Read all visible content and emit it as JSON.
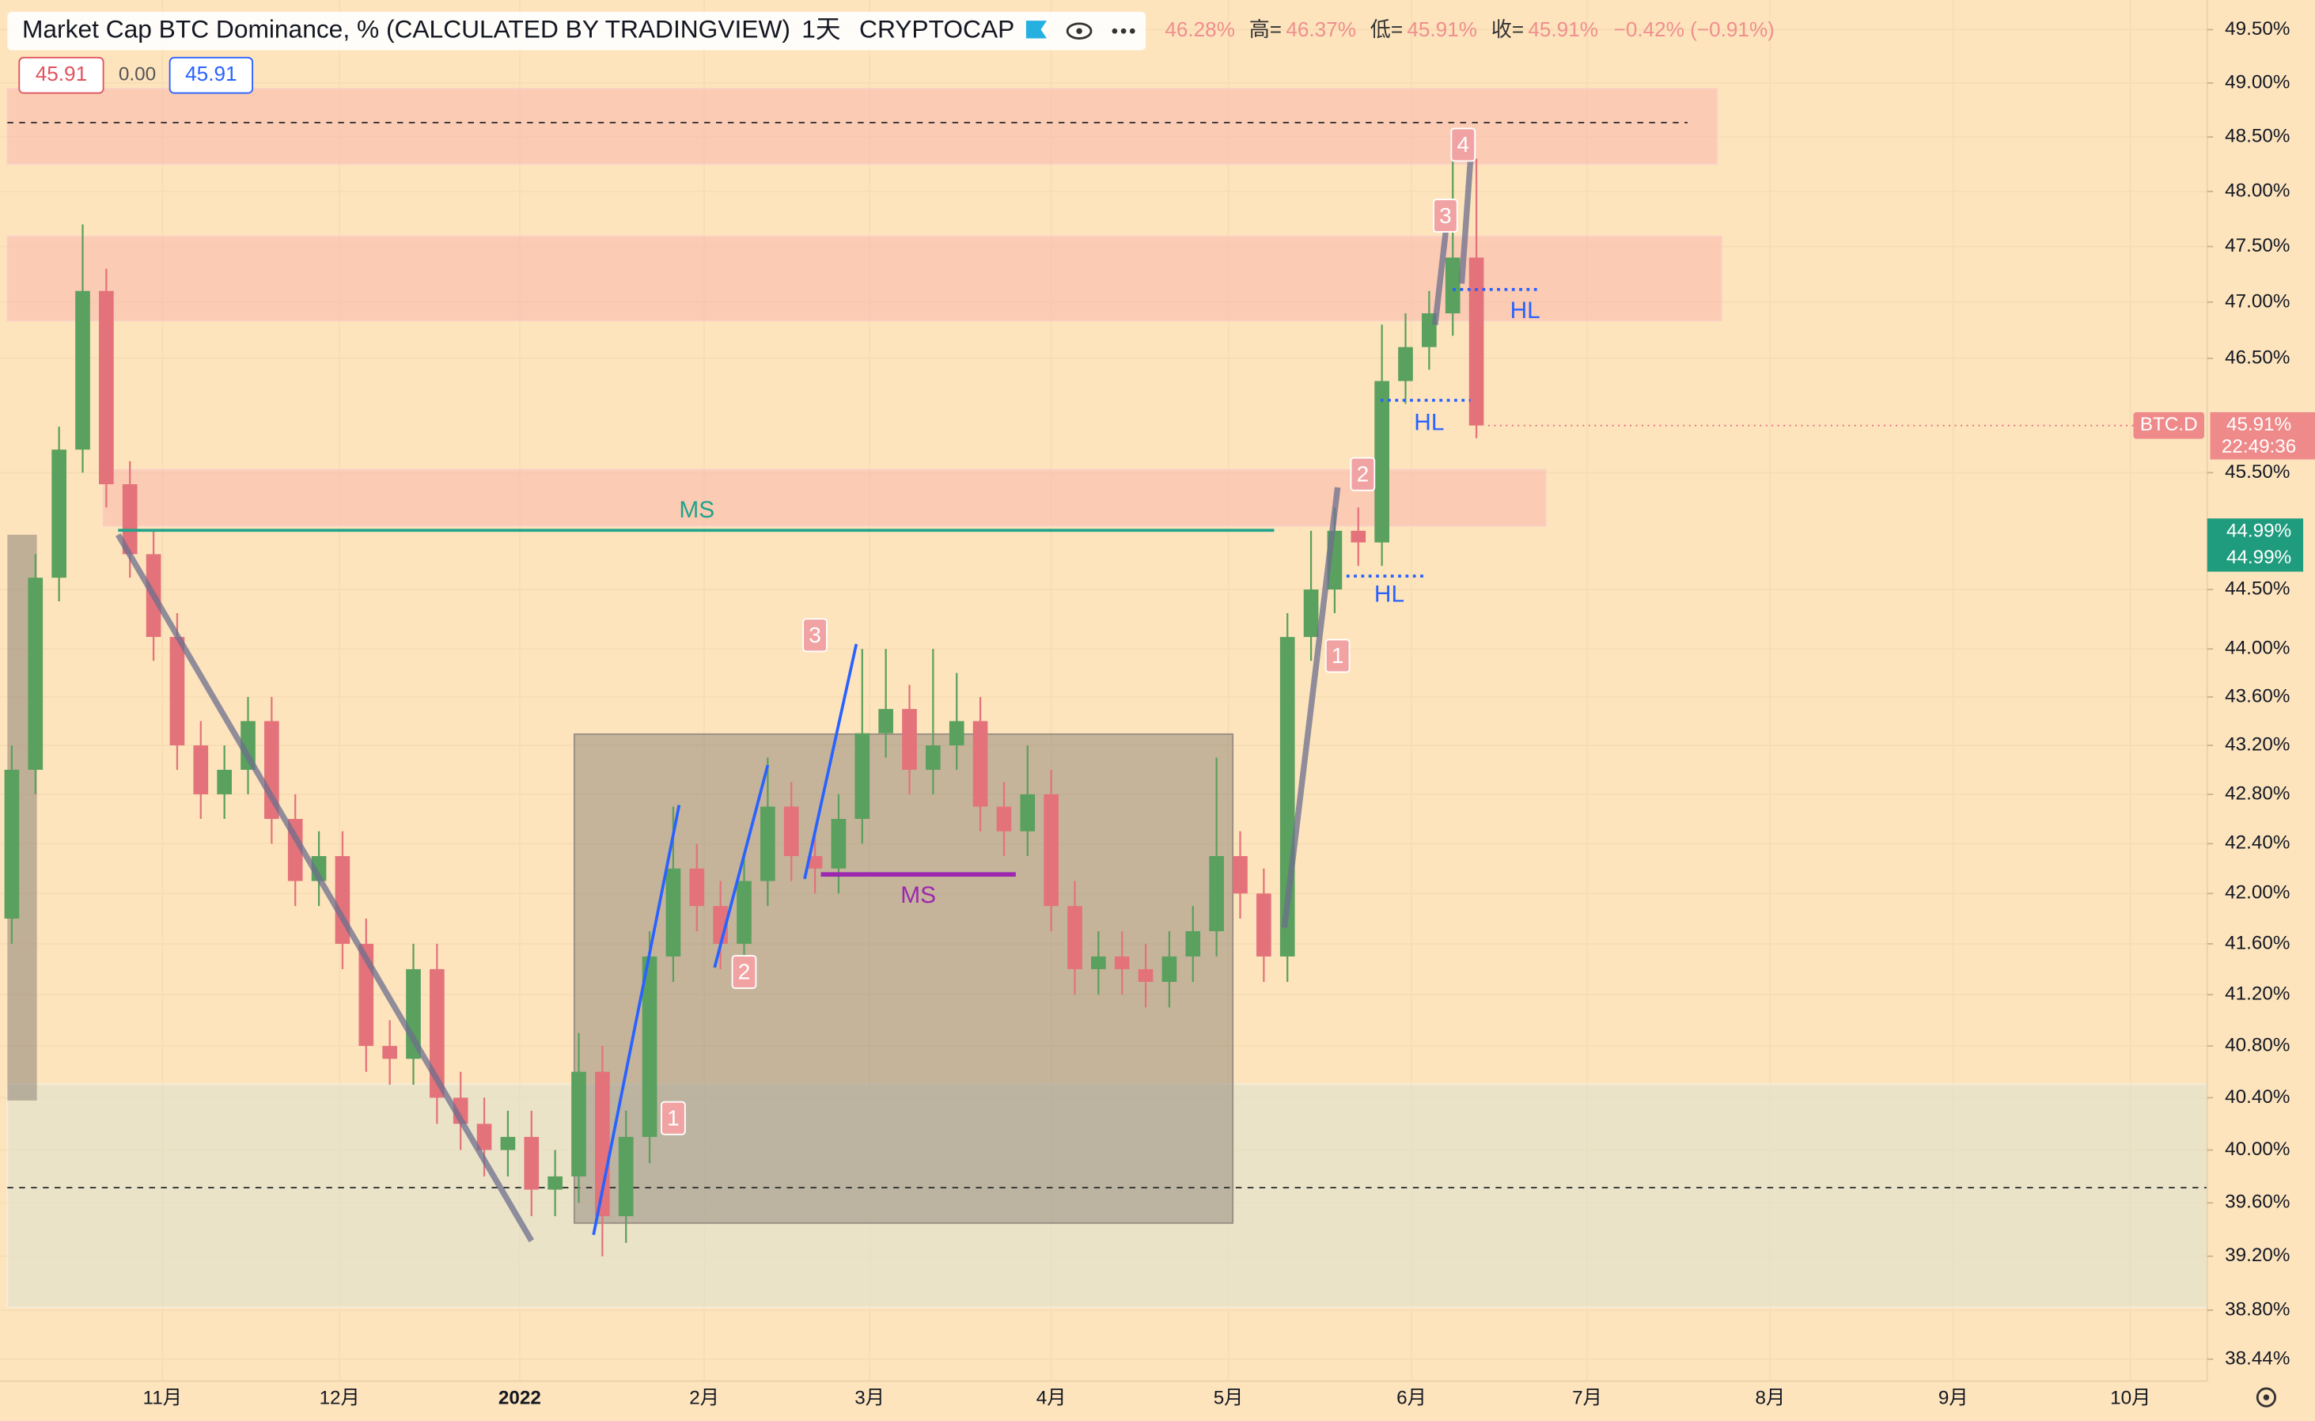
{
  "chart_data": {
    "type": "candlestick",
    "header": {
      "title": "Market Cap BTC Dominance, % (CALCULATED BY TRADINGVIEW)",
      "interval": "1天",
      "exchange": "CRYPTOCAP",
      "open": "46.28%",
      "high_label": "高=",
      "high": "46.37%",
      "low_label": "低=",
      "low": "45.91%",
      "close_label": "收=",
      "close": "45.91%",
      "change": "−0.42% (−0.91%)",
      "buttons": [
        "45.91",
        "0.00",
        "45.91"
      ]
    },
    "price_tags": {
      "symbol": "BTC.D",
      "last": "45.91%",
      "countdown": "22:49:36",
      "level_a": "44.99%",
      "level_b": "44.99%"
    },
    "log_scale": true,
    "grid": true,
    "up_color": "#5aa05e",
    "down_color": "#e4727a",
    "ylim": [
      38.28,
      49.78
    ],
    "yticks": [
      {
        "value": 49.5,
        "label": "49.50%"
      },
      {
        "value": 49.0,
        "label": "49.00%"
      },
      {
        "value": 48.5,
        "label": "48.50%"
      },
      {
        "value": 48.0,
        "label": "48.00%"
      },
      {
        "value": 47.5,
        "label": "47.50%"
      },
      {
        "value": 47.0,
        "label": "47.00%"
      },
      {
        "value": 46.5,
        "label": "46.50%"
      },
      {
        "value": 45.5,
        "label": "45.50%"
      },
      {
        "value": 44.5,
        "label": "44.50%"
      },
      {
        "value": 44.0,
        "label": "44.00%"
      },
      {
        "value": 43.6,
        "label": "43.60%"
      },
      {
        "value": 43.2,
        "label": "43.20%"
      },
      {
        "value": 42.8,
        "label": "42.80%"
      },
      {
        "value": 42.4,
        "label": "42.40%"
      },
      {
        "value": 42.0,
        "label": "42.00%"
      },
      {
        "value": 41.6,
        "label": "41.60%"
      },
      {
        "value": 41.2,
        "label": "41.20%"
      },
      {
        "value": 40.8,
        "label": "40.80%"
      },
      {
        "value": 40.4,
        "label": "40.40%"
      },
      {
        "value": 40.0,
        "label": "40.00%"
      },
      {
        "value": 39.6,
        "label": "39.60%"
      },
      {
        "value": 39.2,
        "label": "39.20%"
      },
      {
        "value": 38.8,
        "label": "38.80%"
      },
      {
        "value": 38.44,
        "label": "38.44%"
      }
    ],
    "month_labels": [
      "11月",
      "12月",
      "2022",
      "2月",
      "3月",
      "4月",
      "5月",
      "6月",
      "7月",
      "8月",
      "9月",
      "10月"
    ],
    "annotations": [
      "MS",
      "MS",
      "HL",
      "HL",
      "HL",
      "1",
      "2",
      "3",
      "1",
      "2",
      "3",
      "4"
    ],
    "open": [
      41.8,
      43.0,
      44.6,
      45.7,
      47.1,
      45.4,
      44.8,
      44.1,
      43.2,
      42.8,
      43.0,
      43.4,
      42.6,
      42.1,
      42.3,
      41.6,
      40.8,
      40.7,
      41.4,
      40.4,
      40.2,
      40.0,
      40.1,
      39.7,
      39.8,
      40.6,
      39.5,
      40.1,
      41.5,
      42.2,
      41.9,
      41.6,
      42.1,
      42.7,
      42.3,
      42.2,
      42.6,
      43.3,
      43.5,
      43.0,
      43.2,
      43.4,
      42.7,
      42.5,
      42.8,
      41.9,
      41.4,
      41.5,
      41.4,
      41.3,
      41.5,
      41.7,
      42.3,
      42.0,
      41.5,
      44.1,
      44.5,
      45.0,
      44.9,
      46.3,
      46.6,
      46.9,
      47.4
    ],
    "high": [
      43.2,
      44.8,
      45.9,
      47.7,
      47.3,
      45.6,
      45.0,
      44.3,
      43.4,
      43.2,
      43.6,
      43.6,
      42.8,
      42.5,
      42.5,
      41.8,
      41.0,
      41.6,
      41.6,
      40.6,
      40.4,
      40.3,
      40.3,
      40.0,
      40.9,
      40.8,
      40.3,
      41.7,
      42.7,
      42.4,
      42.1,
      42.3,
      43.1,
      42.9,
      42.5,
      42.8,
      44.0,
      44.0,
      43.7,
      44.0,
      43.8,
      43.6,
      42.9,
      43.2,
      43.0,
      42.1,
      41.7,
      41.7,
      41.6,
      41.7,
      41.9,
      43.1,
      42.5,
      42.2,
      44.3,
      45.0,
      45.2,
      45.2,
      46.8,
      46.9,
      47.1,
      48.4,
      48.3
    ],
    "low": [
      41.6,
      42.8,
      44.4,
      45.5,
      45.2,
      44.6,
      43.9,
      43.0,
      42.6,
      42.6,
      42.8,
      42.4,
      41.9,
      41.9,
      41.4,
      40.6,
      40.5,
      40.5,
      40.2,
      40.0,
      39.8,
      39.8,
      39.5,
      39.5,
      39.6,
      39.2,
      39.3,
      39.9,
      41.3,
      41.7,
      41.4,
      41.4,
      41.9,
      42.1,
      42.0,
      42.0,
      42.4,
      43.1,
      42.8,
      42.8,
      43.0,
      42.5,
      42.3,
      42.3,
      41.7,
      41.2,
      41.2,
      41.2,
      41.1,
      41.1,
      41.3,
      41.5,
      41.8,
      41.3,
      41.3,
      43.9,
      44.3,
      44.7,
      44.7,
      46.1,
      46.4,
      46.7,
      45.8
    ],
    "close": [
      43.0,
      44.6,
      45.7,
      47.1,
      45.4,
      44.8,
      44.1,
      43.2,
      42.8,
      43.0,
      43.4,
      42.6,
      42.1,
      42.3,
      41.6,
      40.8,
      40.7,
      41.4,
      40.4,
      40.2,
      40.0,
      40.1,
      39.7,
      39.8,
      40.6,
      39.5,
      40.1,
      41.5,
      42.2,
      41.9,
      41.6,
      42.1,
      42.7,
      42.3,
      42.2,
      42.6,
      43.3,
      43.5,
      43.0,
      43.2,
      43.4,
      42.7,
      42.5,
      42.8,
      41.9,
      41.4,
      41.5,
      41.4,
      41.3,
      41.5,
      41.7,
      42.3,
      42.0,
      41.5,
      44.1,
      44.5,
      45.0,
      44.9,
      46.3,
      46.6,
      46.9,
      47.4,
      45.91
    ]
  }
}
